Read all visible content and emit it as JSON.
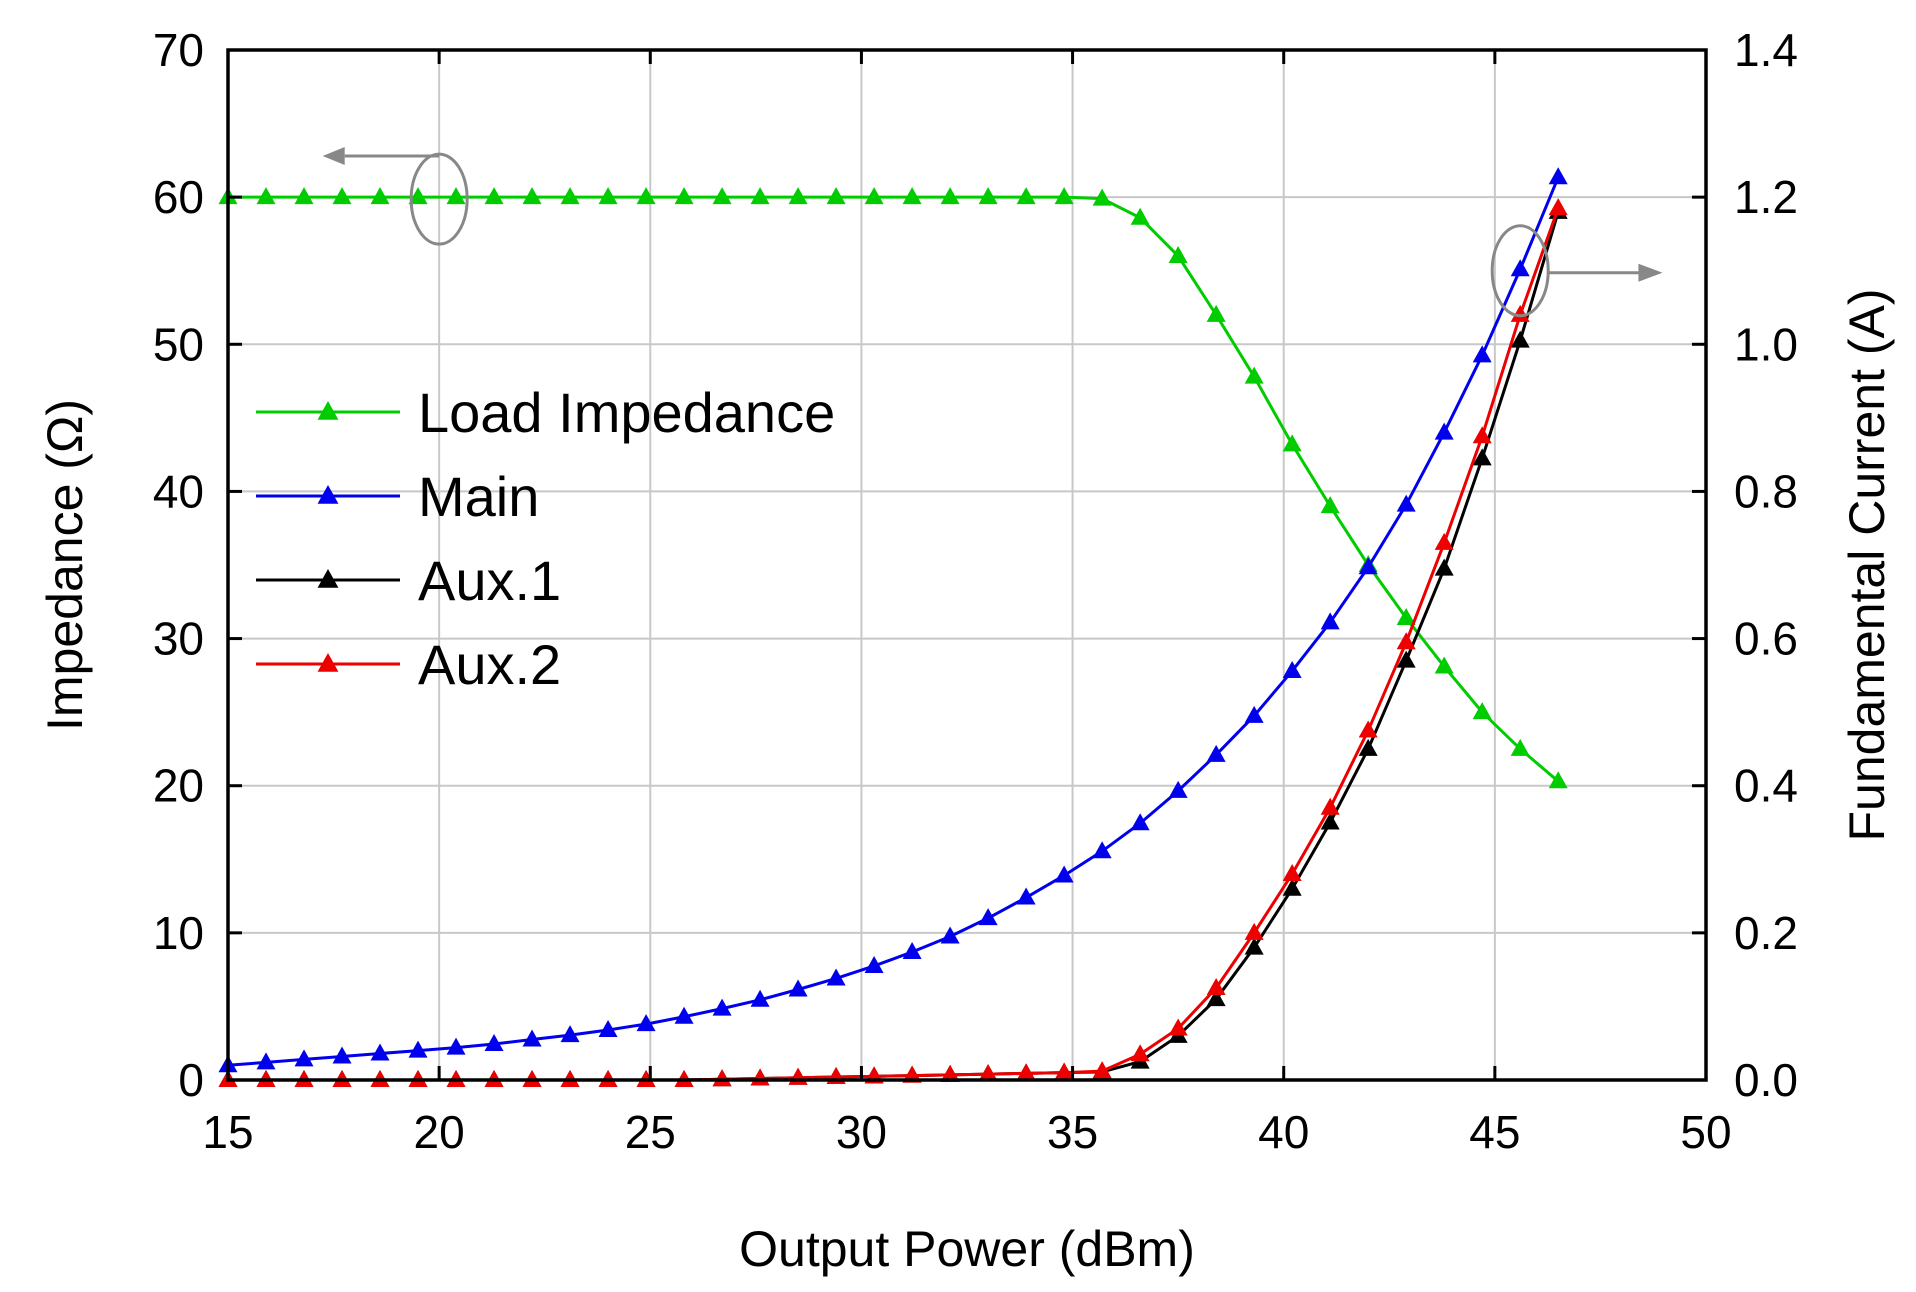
{
  "chart_data": {
    "type": "line",
    "xlabel": "Output Power (dBm)",
    "ylabel": "Impedance (Ω)",
    "y2label": "Fundamental Current (A)",
    "xlim": [
      15,
      50
    ],
    "ylim": [
      0,
      70
    ],
    "y2lim": [
      0,
      1.4
    ],
    "xticks": [
      "15",
      "20",
      "25",
      "30",
      "35",
      "40",
      "45",
      "50"
    ],
    "yticks": [
      "0",
      "10",
      "20",
      "30",
      "40",
      "50",
      "60",
      "70"
    ],
    "y2ticks": [
      "0.0",
      "0.2",
      "0.4",
      "0.6",
      "0.8",
      "1.0",
      "1.2",
      "1.4"
    ],
    "grid": true,
    "legend_position": "center-left",
    "x": [
      15.0,
      15.9,
      16.8,
      17.7,
      18.6,
      19.5,
      20.4,
      21.3,
      22.2,
      23.1,
      24.0,
      24.9,
      25.8,
      26.7,
      27.6,
      28.5,
      29.4,
      30.3,
      31.2,
      32.1,
      33.0,
      33.9,
      34.8,
      35.7,
      36.6,
      37.5,
      38.4,
      39.3,
      40.2,
      41.1,
      42.0,
      42.9,
      43.8,
      44.7,
      45.6,
      46.5
    ],
    "series": [
      {
        "name": "Load Impedance",
        "axis": "left",
        "color": "#00cc00",
        "values": [
          60,
          60,
          60,
          60,
          60,
          60,
          60,
          60,
          60,
          60,
          60,
          60,
          60,
          60,
          60,
          60,
          60,
          60,
          60,
          60,
          60,
          60,
          60,
          59.9,
          58.6,
          56.0,
          52.0,
          47.8,
          43.2,
          39.0,
          35.0,
          31.4,
          28.1,
          25.0,
          22.5,
          20.3
        ]
      },
      {
        "name": "Main",
        "axis": "right",
        "color": "#0000ee",
        "values": [
          0.02,
          0.024,
          0.028,
          0.032,
          0.036,
          0.04,
          0.044,
          0.049,
          0.055,
          0.061,
          0.068,
          0.076,
          0.086,
          0.097,
          0.109,
          0.123,
          0.138,
          0.155,
          0.174,
          0.195,
          0.22,
          0.248,
          0.278,
          0.311,
          0.349,
          0.393,
          0.442,
          0.495,
          0.556,
          0.622,
          0.697,
          0.782,
          0.88,
          0.985,
          1.102,
          1.227
        ]
      },
      {
        "name": "Aux.1",
        "axis": "right",
        "color": "#000000",
        "values": [
          0,
          0,
          0,
          0,
          0,
          0,
          0,
          0,
          0,
          0,
          0,
          0,
          0,
          0.001,
          0.002,
          0.003,
          0.004,
          0.005,
          0.006,
          0.007,
          0.008,
          0.009,
          0.01,
          0.011,
          0.025,
          0.06,
          0.11,
          0.18,
          0.26,
          0.35,
          0.45,
          0.57,
          0.695,
          0.845,
          1.005,
          1.18
        ]
      },
      {
        "name": "Aux.2",
        "axis": "right",
        "color": "#ee0000",
        "values": [
          0,
          0,
          0,
          0,
          0,
          0,
          0,
          0,
          0,
          0,
          0,
          0,
          0,
          0.001,
          0.002,
          0.003,
          0.004,
          0.005,
          0.006,
          0.007,
          0.008,
          0.009,
          0.01,
          0.012,
          0.035,
          0.07,
          0.125,
          0.2,
          0.28,
          0.37,
          0.475,
          0.595,
          0.73,
          0.875,
          1.04,
          1.185
        ]
      }
    ],
    "annotations": [
      {
        "type": "axis-indicator",
        "target": "Load Impedance",
        "points_to": "left axis"
      },
      {
        "type": "axis-indicator",
        "target": "Main",
        "points_to": "right axis"
      }
    ]
  }
}
